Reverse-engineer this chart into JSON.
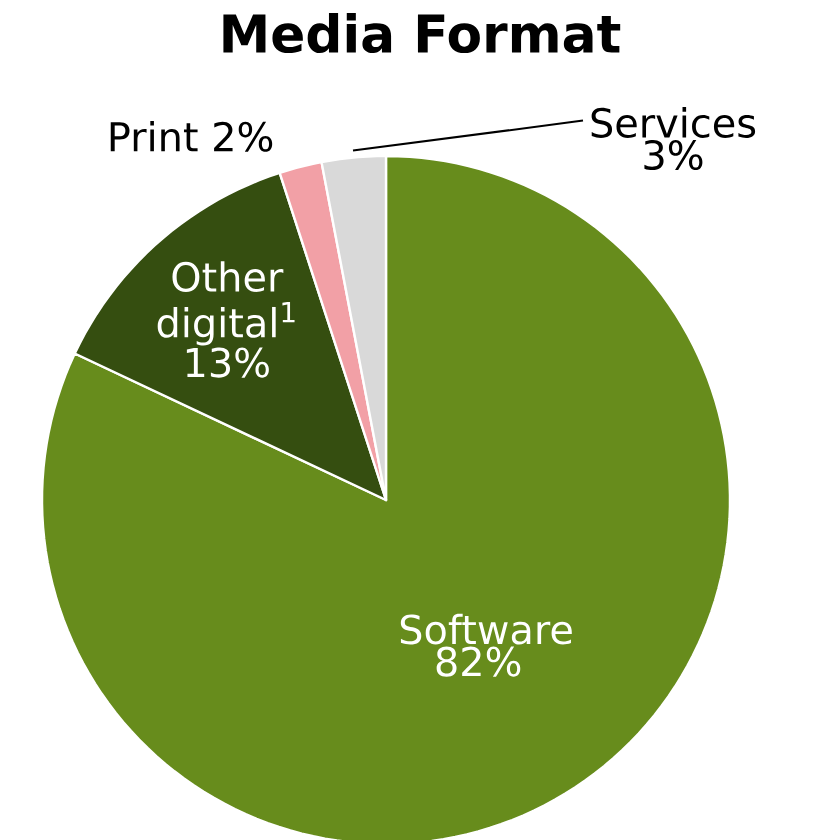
{
  "chart_data": {
    "type": "pie",
    "title": "Media Format",
    "categories": [
      "Software",
      "Other digital$^{1}$",
      "Print",
      "Services"
    ],
    "values": [
      82,
      13,
      2,
      3
    ],
    "value_labels": [
      "82%",
      "13%",
      "2%",
      "3%"
    ],
    "colors": [
      "#678c1c",
      "#354e10",
      "#f2a0a6",
      "#d9d9d9"
    ]
  }
}
